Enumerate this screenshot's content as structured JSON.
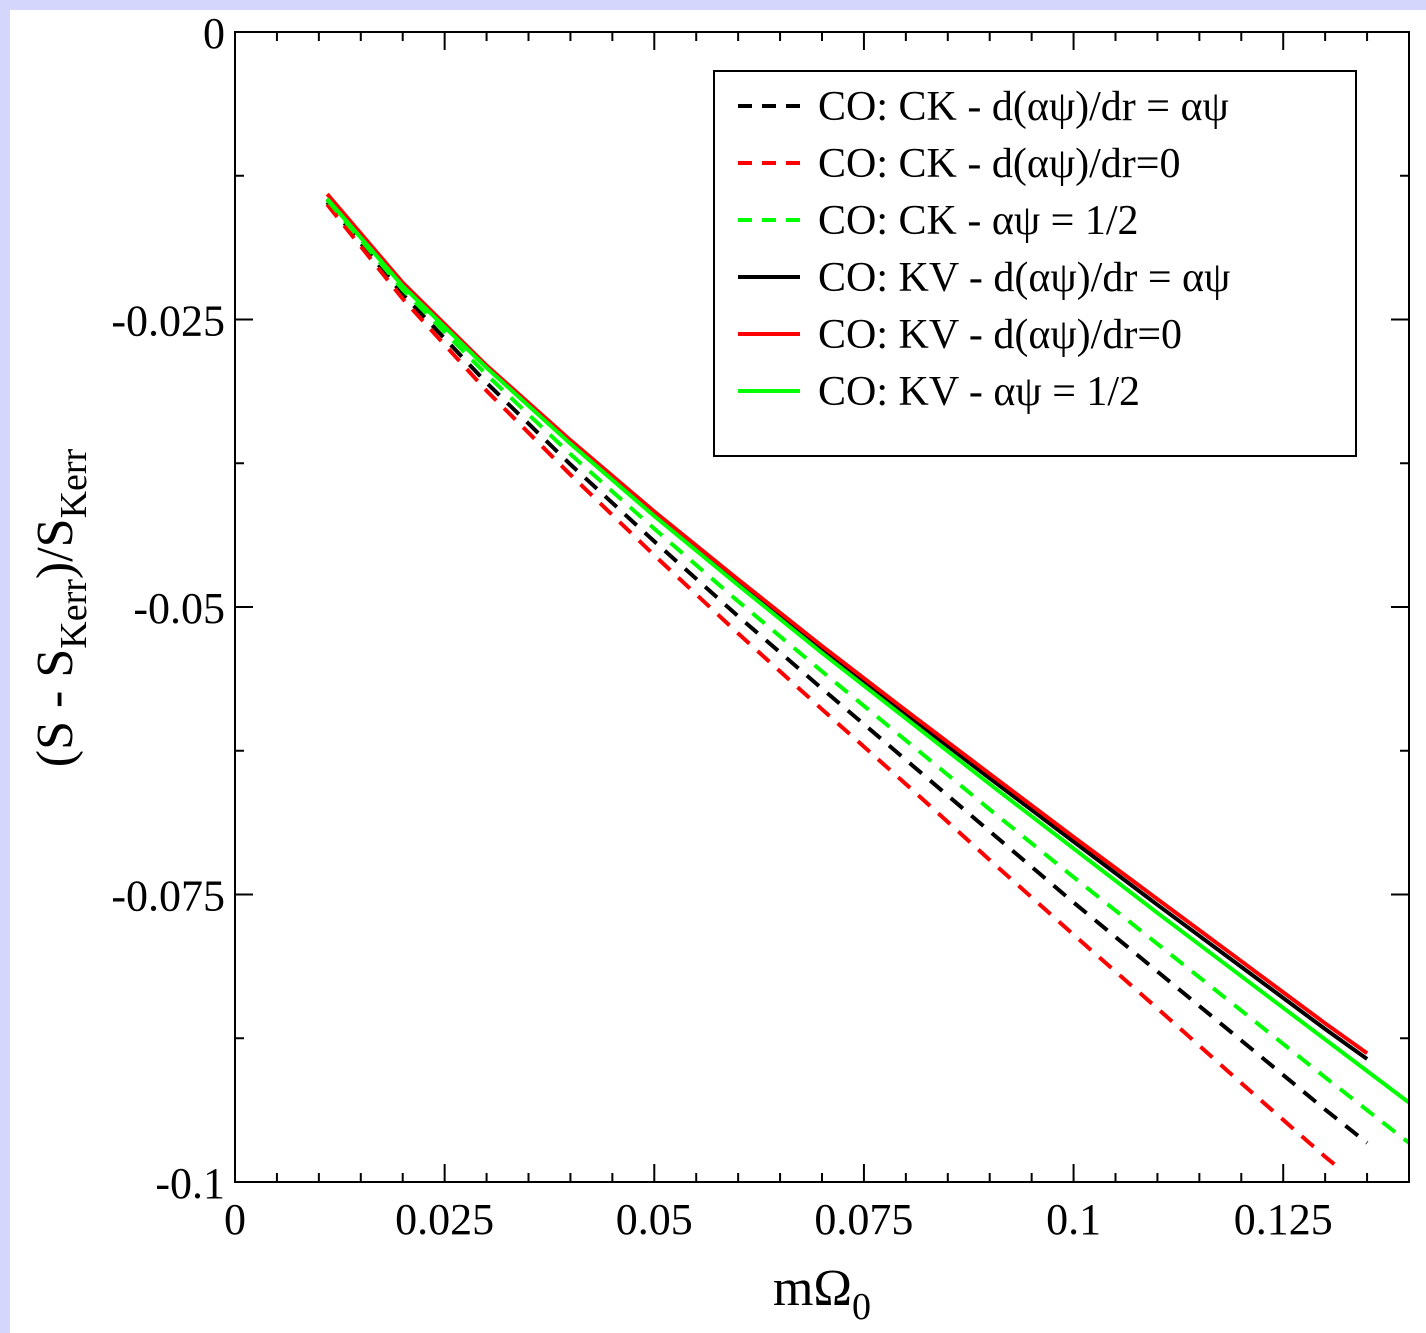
{
  "chart_data": {
    "type": "line",
    "xlabel": "mΩ",
    "xlabel_sub": "0",
    "ylabel": {
      "open": "(S - S",
      "sub1": "Kerr",
      "mid": ")/S",
      "sub2": "Kerr"
    },
    "xlim": [
      0,
      0.14
    ],
    "ylim": [
      -0.1,
      0
    ],
    "x_ticks": [
      0,
      0.025,
      0.05,
      0.075,
      0.1,
      0.125
    ],
    "x_tick_labels": [
      "0",
      "0.025",
      "0.05",
      "0.075",
      "0.1",
      "0.125"
    ],
    "y_ticks": [
      0,
      -0.025,
      -0.05,
      -0.075,
      -0.1
    ],
    "y_tick_labels": [
      "0",
      "-0.025",
      "-0.05",
      "-0.075",
      "-0.1"
    ],
    "grid": false,
    "legend_position": "top-right",
    "series": [
      {
        "name": "CO: CK - d(αψ)/dr = αψ",
        "color": "#000000",
        "dash": true,
        "x": [
          0.011,
          0.02,
          0.03,
          0.04,
          0.05,
          0.06,
          0.07,
          0.08,
          0.09,
          0.1,
          0.11,
          0.12,
          0.13,
          0.135
        ],
        "y": [
          -0.0148,
          -0.0228,
          -0.0305,
          -0.0376,
          -0.0443,
          -0.0508,
          -0.0571,
          -0.0633,
          -0.0695,
          -0.0757,
          -0.0817,
          -0.0877,
          -0.0937,
          -0.0966
        ]
      },
      {
        "name": "CO: CK - d(αψ)/dr=0",
        "color": "#ff0000",
        "dash": true,
        "x": [
          0.011,
          0.02,
          0.03,
          0.04,
          0.05,
          0.06,
          0.07,
          0.08,
          0.09,
          0.1,
          0.11,
          0.12,
          0.13,
          0.1315
        ],
        "y": [
          -0.015,
          -0.0232,
          -0.0312,
          -0.0385,
          -0.0455,
          -0.0523,
          -0.0589,
          -0.0654,
          -0.072,
          -0.0785,
          -0.0849,
          -0.0914,
          -0.0978,
          -0.0987
        ]
      },
      {
        "name": "CO: CK - αψ = 1/2",
        "color": "#00ff00",
        "dash": true,
        "x": [
          0.011,
          0.02,
          0.03,
          0.04,
          0.05,
          0.06,
          0.07,
          0.08,
          0.09,
          0.1,
          0.11,
          0.12,
          0.13,
          0.14
        ],
        "y": [
          -0.0146,
          -0.0224,
          -0.0298,
          -0.0367,
          -0.0432,
          -0.0495,
          -0.0556,
          -0.0616,
          -0.0676,
          -0.0735,
          -0.0793,
          -0.0851,
          -0.0909,
          -0.0966
        ]
      },
      {
        "name": "CO: KV - d(αψ)/dr = αψ",
        "color": "#000000",
        "dash": false,
        "x": [
          0.011,
          0.02,
          0.03,
          0.04,
          0.05,
          0.06,
          0.07,
          0.08,
          0.09,
          0.1,
          0.11,
          0.12,
          0.13,
          0.135
        ],
        "y": [
          -0.0145,
          -0.022,
          -0.0291,
          -0.0356,
          -0.0418,
          -0.0478,
          -0.0536,
          -0.0593,
          -0.0649,
          -0.0704,
          -0.0759,
          -0.0813,
          -0.0867,
          -0.0893
        ]
      },
      {
        "name": "CO: KV - d(αψ)/dr=0",
        "color": "#ff0000",
        "dash": false,
        "x": [
          0.011,
          0.02,
          0.03,
          0.04,
          0.05,
          0.06,
          0.07,
          0.08,
          0.09,
          0.1,
          0.11,
          0.12,
          0.13,
          0.135
        ],
        "y": [
          -0.0141,
          -0.0218,
          -0.029,
          -0.0355,
          -0.0417,
          -0.0476,
          -0.0534,
          -0.059,
          -0.0645,
          -0.07,
          -0.0754,
          -0.0808,
          -0.0862,
          -0.0888
        ]
      },
      {
        "name": "CO: KV - αψ = 1/2",
        "color": "#00ff00",
        "dash": false,
        "x": [
          0.011,
          0.02,
          0.03,
          0.04,
          0.05,
          0.06,
          0.07,
          0.08,
          0.09,
          0.1,
          0.11,
          0.12,
          0.13,
          0.14
        ],
        "y": [
          -0.0145,
          -0.0221,
          -0.0292,
          -0.0358,
          -0.0421,
          -0.0481,
          -0.054,
          -0.0597,
          -0.0654,
          -0.071,
          -0.0766,
          -0.0821,
          -0.0876,
          -0.0931
        ]
      }
    ]
  }
}
